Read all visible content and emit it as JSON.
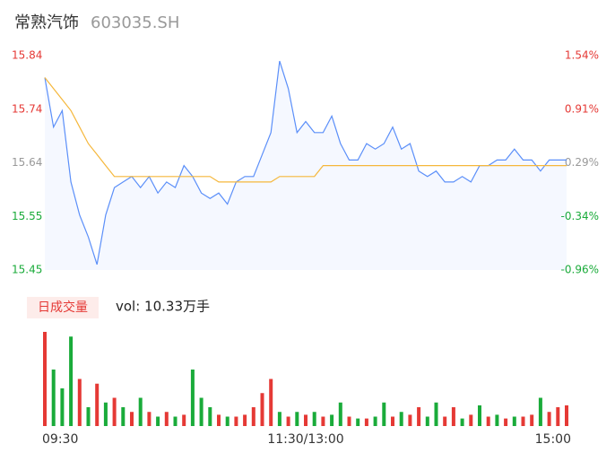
{
  "chart_data": {
    "type": "intraday",
    "title": "常熟汽饰",
    "subtitle": "603035.SH",
    "x": [
      0,
      4,
      8,
      12,
      16,
      20,
      24,
      28,
      32,
      36,
      40,
      44,
      48,
      52,
      56,
      60,
      64,
      68,
      72,
      76,
      80,
      84,
      88,
      92,
      96,
      100,
      104,
      108,
      112,
      116,
      120,
      124,
      128,
      132,
      136,
      140,
      144,
      148,
      152,
      156,
      160,
      164,
      168,
      172,
      176,
      180,
      184,
      188,
      192,
      196,
      200,
      204,
      208,
      212,
      216,
      220,
      224,
      228,
      232,
      236,
      240
    ],
    "xlim": [
      0,
      240
    ],
    "xticks": [
      {
        "value": 0,
        "label": "09:30"
      },
      {
        "value": 120,
        "label": "11:30/13:00"
      },
      {
        "value": 240,
        "label": "15:00"
      }
    ],
    "ylim": [
      15.45,
      15.84
    ],
    "yticks": [
      15.45,
      {
        "value": 15.5475,
        "label": "15.55"
      },
      {
        "value": 15.645,
        "label": "15.64"
      },
      {
        "value": 15.7425,
        "label": "15.74"
      },
      15.84
    ],
    "y2lim": [
      -0.96,
      1.54
    ],
    "y2ticks": [
      {
        "value": -0.96,
        "label": "-0.96%"
      },
      {
        "value": -0.335,
        "label": "-0.34%"
      },
      {
        "value": 0.29,
        "label": "0.29%"
      },
      {
        "value": 0.915,
        "label": "0.91%"
      },
      {
        "value": 1.54,
        "label": "1.54%"
      }
    ],
    "series": [
      {
        "name": "price",
        "color": "#5b8ff9",
        "values": [
          15.8,
          15.71,
          15.74,
          15.61,
          15.55,
          15.51,
          15.46,
          15.55,
          15.6,
          15.61,
          15.62,
          15.6,
          15.62,
          15.59,
          15.61,
          15.6,
          15.64,
          15.62,
          15.59,
          15.58,
          15.59,
          15.57,
          15.61,
          15.62,
          15.62,
          15.66,
          15.7,
          15.83,
          15.78,
          15.7,
          15.72,
          15.7,
          15.7,
          15.73,
          15.68,
          15.65,
          15.65,
          15.68,
          15.67,
          15.68,
          15.71,
          15.67,
          15.68,
          15.63,
          15.62,
          15.63,
          15.61,
          15.61,
          15.62,
          15.61,
          15.64,
          15.64,
          15.65,
          15.65,
          15.67,
          15.65,
          15.65,
          15.63,
          15.65,
          15.65,
          15.65
        ]
      },
      {
        "name": "average",
        "color": "#f5b73b",
        "values": [
          15.8,
          15.78,
          15.76,
          15.74,
          15.71,
          15.68,
          15.66,
          15.64,
          15.62,
          15.62,
          15.62,
          15.62,
          15.62,
          15.62,
          15.62,
          15.62,
          15.62,
          15.62,
          15.62,
          15.62,
          15.61,
          15.61,
          15.61,
          15.61,
          15.61,
          15.61,
          15.61,
          15.62,
          15.62,
          15.62,
          15.62,
          15.62,
          15.64,
          15.64,
          15.64,
          15.64,
          15.64,
          15.64,
          15.64,
          15.64,
          15.64,
          15.64,
          15.64,
          15.64,
          15.64,
          15.64,
          15.64,
          15.64,
          15.64,
          15.64,
          15.64,
          15.64,
          15.64,
          15.64,
          15.64,
          15.64,
          15.64,
          15.64,
          15.64,
          15.64,
          15.64
        ]
      }
    ],
    "volume_label": "日成交量",
    "volume_text": "vol: 10.33万手",
    "volume": {
      "values": [
        100,
        60,
        40,
        95,
        50,
        20,
        45,
        25,
        30,
        20,
        15,
        30,
        15,
        10,
        15,
        10,
        12,
        60,
        30,
        20,
        12,
        10,
        10,
        12,
        20,
        35,
        50,
        15,
        10,
        15,
        12,
        15,
        10,
        12,
        25,
        10,
        8,
        8,
        10,
        25,
        10,
        15,
        12,
        20,
        10,
        25,
        10,
        20,
        8,
        12,
        22,
        10,
        12,
        8,
        10,
        10,
        12,
        30,
        15,
        20,
        22
      ],
      "colors": [
        "#e53935",
        "#1aab3a",
        "#1aab3a",
        "#1aab3a",
        "#e53935",
        "#1aab3a",
        "#e53935",
        "#1aab3a",
        "#e53935",
        "#1aab3a",
        "#e53935",
        "#1aab3a",
        "#e53935",
        "#1aab3a",
        "#e53935",
        "#1aab3a",
        "#e53935",
        "#1aab3a",
        "#1aab3a",
        "#1aab3a",
        "#e53935",
        "#1aab3a",
        "#e53935",
        "#e53935",
        "#e53935",
        "#e53935",
        "#e53935",
        "#1aab3a",
        "#e53935",
        "#1aab3a",
        "#e53935",
        "#1aab3a",
        "#e53935",
        "#1aab3a",
        "#1aab3a",
        "#e53935",
        "#1aab3a",
        "#e53935",
        "#1aab3a",
        "#1aab3a",
        "#e53935",
        "#1aab3a",
        "#e53935",
        "#e53935",
        "#1aab3a",
        "#1aab3a",
        "#e53935",
        "#e53935",
        "#1aab3a",
        "#e53935",
        "#1aab3a",
        "#e53935",
        "#1aab3a",
        "#e53935",
        "#1aab3a",
        "#e53935",
        "#e53935",
        "#1aab3a",
        "#e53935",
        "#e53935",
        "#e53935"
      ]
    }
  }
}
